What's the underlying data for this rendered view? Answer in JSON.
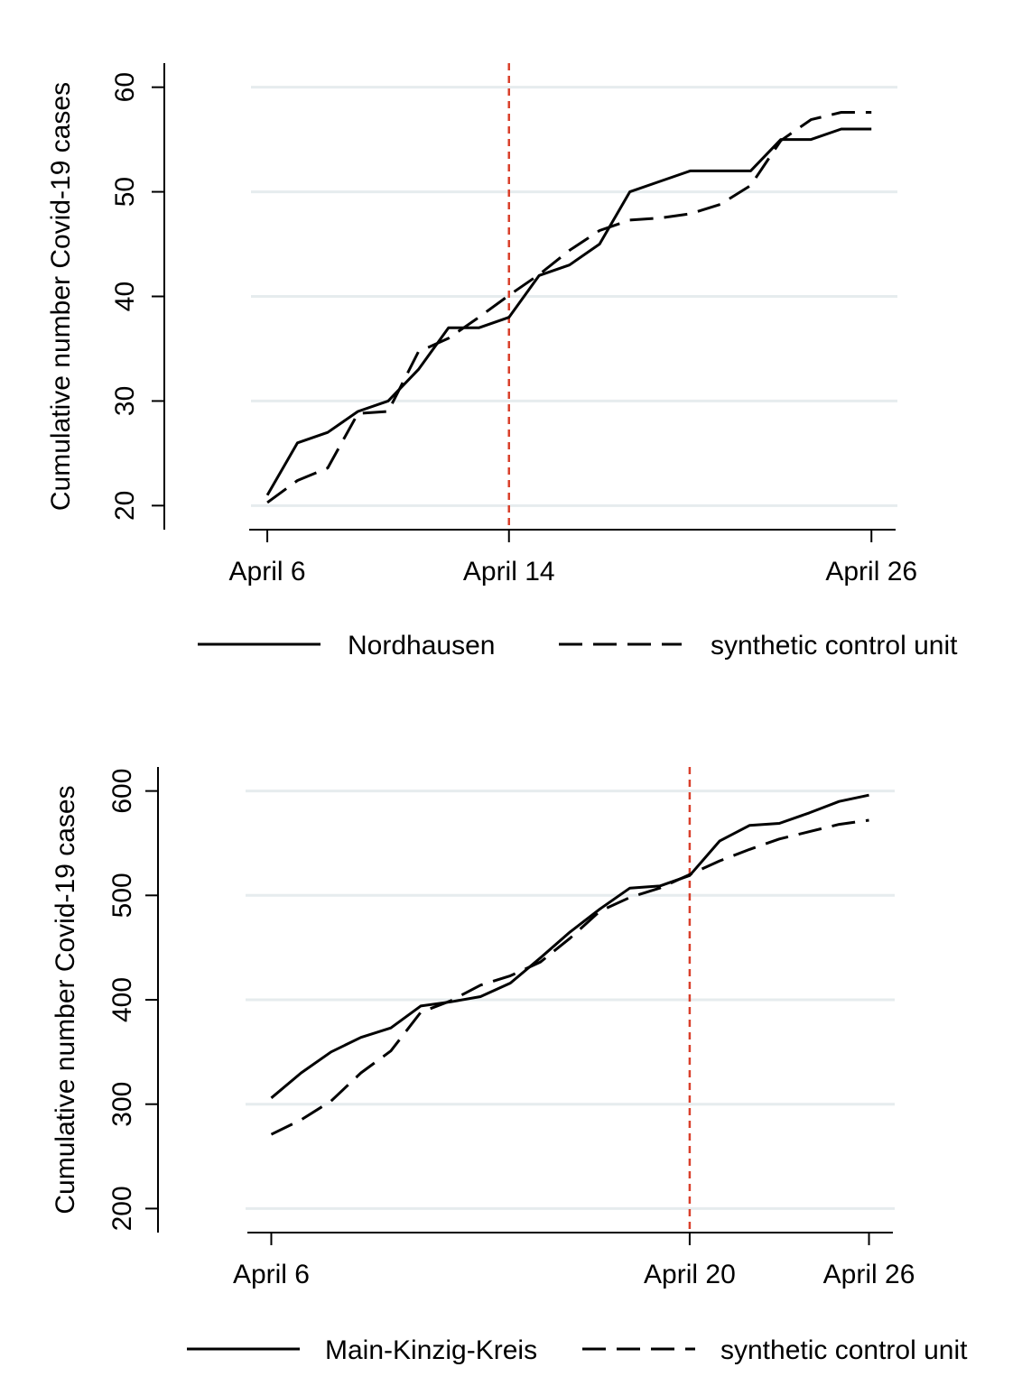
{
  "chart_data": [
    {
      "type": "line",
      "ylabel": "Cumulative number Covid-19 cases",
      "xlabel": "",
      "x": [
        6,
        7,
        8,
        9,
        10,
        11,
        12,
        13,
        14,
        15,
        16,
        17,
        18,
        19,
        20,
        21,
        22,
        23,
        24,
        25,
        26
      ],
      "xticks": [
        {
          "value": 6,
          "label": "April 6"
        },
        {
          "value": 14,
          "label": "April 14"
        },
        {
          "value": 26,
          "label": "April 26"
        }
      ],
      "yticks": [
        20,
        30,
        40,
        50,
        60
      ],
      "ylim": [
        17.7,
        62.3
      ],
      "xlim": [
        5.4,
        26.8
      ],
      "treatment_day": 14,
      "series": [
        {
          "name": "Nordhausen",
          "style": "solid",
          "values": [
            21,
            26,
            27,
            29,
            30,
            33,
            37,
            37,
            38,
            42,
            43,
            45,
            50,
            51,
            52,
            52,
            52,
            55,
            55,
            56,
            56
          ]
        },
        {
          "name": "synthetic control unit",
          "style": "dashed",
          "values": [
            20.3,
            22.4,
            23.6,
            28.8,
            29,
            34.7,
            36,
            38,
            40.1,
            42.1,
            44.4,
            46.3,
            47.3,
            47.5,
            47.9,
            48.8,
            50.6,
            54.9,
            56.9,
            57.6,
            57.6
          ]
        }
      ],
      "grid": true,
      "legend_position": "bottom"
    },
    {
      "type": "line",
      "ylabel": "Cumulative number Covid-19 cases",
      "xlabel": "",
      "x": [
        6,
        7,
        8,
        9,
        10,
        11,
        12,
        13,
        14,
        15,
        16,
        17,
        18,
        19,
        20,
        21,
        22,
        23,
        24,
        25,
        26
      ],
      "xticks": [
        {
          "value": 6,
          "label": "April 6"
        },
        {
          "value": 20,
          "label": "April 20"
        },
        {
          "value": 26,
          "label": "April 26"
        }
      ],
      "yticks": [
        200,
        300,
        400,
        500,
        600
      ],
      "ylim": [
        177,
        623
      ],
      "xlim": [
        5.2,
        26.8
      ],
      "treatment_day": 20,
      "series": [
        {
          "name": "Main-Kinzig-Kreis",
          "style": "solid",
          "values": [
            306,
            330,
            350,
            364,
            373,
            394,
            398,
            403,
            416,
            440,
            465,
            487,
            507,
            509,
            519,
            552,
            567,
            569,
            579,
            590,
            596
          ]
        },
        {
          "name": "synthetic control unit",
          "style": "dashed",
          "values": [
            271,
            285,
            303,
            330,
            351,
            388,
            399,
            414,
            423,
            436,
            459,
            485,
            498,
            507,
            520,
            533,
            544,
            554,
            561,
            568,
            572
          ]
        }
      ],
      "grid": true,
      "legend_position": "bottom"
    }
  ],
  "colors": {
    "line": "#000000",
    "grid": "#e6ecee",
    "axis": "#000000",
    "treatment_marker": "#d9402b"
  }
}
